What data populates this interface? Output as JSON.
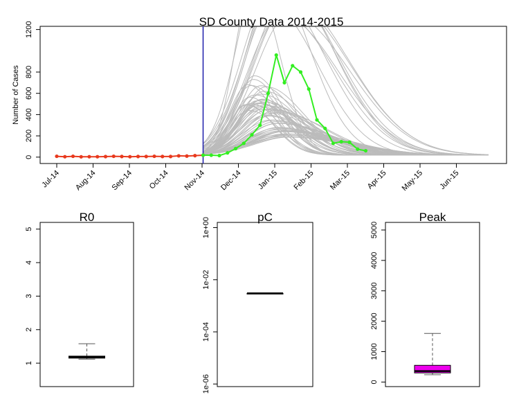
{
  "chart_data": [
    {
      "type": "line",
      "title": "SD County Data 2014-2015",
      "ylabel": "Number of Cases",
      "xlabel": "",
      "ylim": [
        0,
        1200
      ],
      "yticks": [
        0,
        200,
        400,
        600,
        800,
        1200
      ],
      "xticks": [
        "Jul-14",
        "Aug-14",
        "Sep-14",
        "Oct-14",
        "Nov-14",
        "Dec-14",
        "Jan-15",
        "Feb-15",
        "Mar-15",
        "Apr-15",
        "May-15",
        "Jun-15"
      ],
      "colors": {
        "observed": "#e8391d",
        "future": "#33ee22",
        "simulations": "#bbbbbb",
        "vline": "#1a1aaa"
      },
      "vline_week": 18,
      "series": [
        {
          "role": "observed",
          "x_week": [
            0,
            1,
            2,
            3,
            4,
            5,
            6,
            7,
            8,
            9,
            10,
            11,
            12,
            13,
            14,
            15,
            16,
            17,
            18
          ],
          "values": [
            8,
            4,
            8,
            3,
            4,
            4,
            5,
            8,
            6,
            4,
            6,
            6,
            8,
            6,
            6,
            12,
            10,
            14,
            18
          ]
        },
        {
          "role": "future",
          "x_week": [
            18,
            19,
            20,
            21,
            22,
            23,
            24,
            25,
            26,
            27,
            28,
            29,
            30,
            31,
            32,
            33,
            34,
            35,
            36,
            37,
            38
          ],
          "values": [
            18,
            18,
            15,
            40,
            80,
            130,
            210,
            300,
            600,
            960,
            700,
            860,
            800,
            640,
            350,
            270,
            130,
            145,
            140,
            75,
            60
          ]
        }
      ]
    },
    {
      "type": "box",
      "title": "R0",
      "ylim": [
        0.3,
        5.2
      ],
      "yticks": [
        "1",
        "2",
        "3",
        "4",
        "5"
      ],
      "box": {
        "min": 1.12,
        "q1": 1.15,
        "median": 1.18,
        "q3": 1.21,
        "max": 1.58
      },
      "fill": "#c8203a"
    },
    {
      "type": "box",
      "title": "pC",
      "scale": "log",
      "ylim": [
        -6.1,
        0.2
      ],
      "yticks": [
        "1e-06",
        "1e-04",
        "1e-02",
        "1e+00"
      ],
      "box": {
        "min": 0.003,
        "q1": 0.003,
        "median": 0.003,
        "q3": 0.003,
        "max": 0.003
      },
      "fill": "#ffffff"
    },
    {
      "type": "box",
      "title": "Peak",
      "ylim": [
        -150,
        5250
      ],
      "yticks": [
        "0",
        "1000",
        "2000",
        "3000",
        "4000",
        "5000"
      ],
      "box": {
        "min": 240,
        "q1": 300,
        "median": 360,
        "q3": 550,
        "max": 1600
      },
      "fill": "#ee00ee"
    }
  ]
}
